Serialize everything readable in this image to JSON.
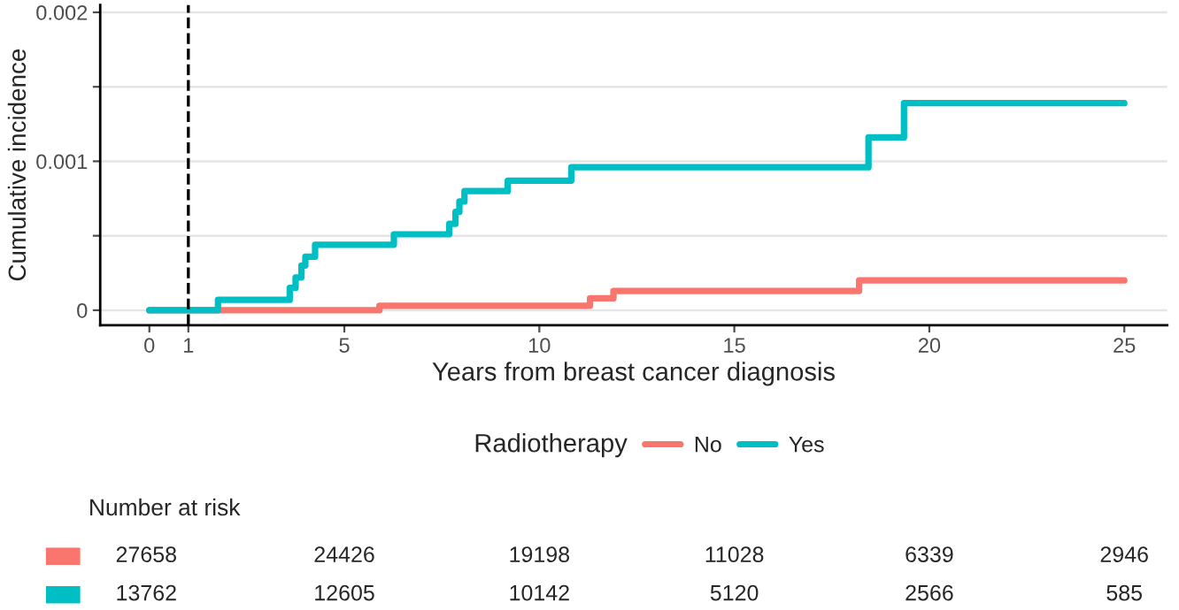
{
  "chart_data": {
    "type": "step",
    "xlabel": "Years from breast cancer diagnosis",
    "ylabel": "Cumulative incidence",
    "legend_title": "Radiotherapy",
    "series": [
      {
        "name": "No",
        "color": "#f8766d",
        "x": [
          0,
          5.9,
          11.3,
          11.9,
          18.2,
          25
        ],
        "values": [
          0,
          3e-05,
          8e-05,
          0.00013,
          0.0002,
          0.0002
        ]
      },
      {
        "name": "Yes",
        "color": "#00bfc4",
        "x": [
          0,
          1.76,
          3.6,
          3.75,
          3.9,
          4.0,
          4.25,
          6.27,
          7.69,
          7.85,
          7.95,
          8.08,
          9.19,
          10.82,
          18.44,
          19.35,
          25
        ],
        "values": [
          0,
          7e-05,
          0.00015,
          0.00022,
          0.0003,
          0.00036,
          0.00044,
          0.00051,
          0.00058,
          0.00066,
          0.00073,
          0.0008,
          0.00087,
          0.00096,
          0.00116,
          0.00139,
          0.00139
        ]
      }
    ],
    "xlim": [
      -1.26,
      26.1
    ],
    "ylim": [
      -0.0001,
      0.00205
    ],
    "xticks": [
      0,
      1,
      5,
      10,
      15,
      20,
      25
    ],
    "yticks": [
      {
        "value": 0,
        "label": "0"
      },
      {
        "value": 0.0005,
        "label": null
      },
      {
        "value": 0.001,
        "label": "0.001"
      },
      {
        "value": 0.0015,
        "label": null
      },
      {
        "value": 0.002,
        "label": "0.002"
      }
    ],
    "grid": "y",
    "legend": "bottom",
    "line_style": "solid",
    "ref_lines": [
      {
        "axis": "x",
        "value": 1,
        "color": "#000000",
        "line_style": "dashed"
      }
    ],
    "annotations": [
      "Number at risk",
      "27658",
      "24426",
      "19198",
      "11028",
      "6339",
      "2946",
      "13762",
      "12605",
      "10142",
      "5120",
      "2566",
      "585"
    ]
  }
}
